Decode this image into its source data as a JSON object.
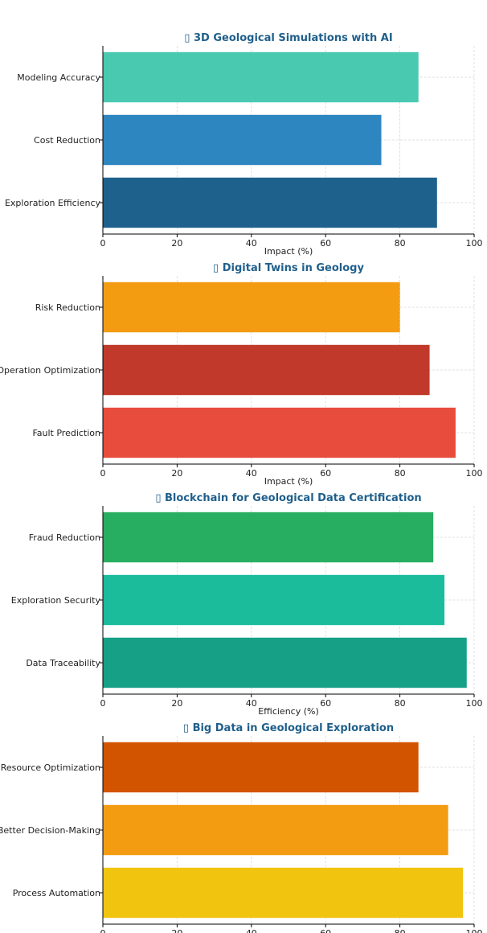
{
  "chart_data": [
    {
      "type": "bar",
      "orientation": "horizontal",
      "title": "▯ 3D Geological Simulations with AI",
      "categories": [
        "Modeling Accuracy",
        "Cost Reduction",
        "Exploration Efficiency"
      ],
      "values": [
        85,
        75,
        90
      ],
      "colors": [
        "#48c9b0",
        "#2e86c1",
        "#1f618d"
      ],
      "xlabel": "Impact (%)",
      "ylabel": "",
      "xlim": [
        0,
        100
      ],
      "xticks": [
        "0",
        "20",
        "40",
        "60",
        "80",
        "100"
      ],
      "grid": true
    },
    {
      "type": "bar",
      "orientation": "horizontal",
      "title": "▯ Digital Twins in Geology",
      "categories": [
        "Risk Reduction",
        "Operation Optimization",
        "Fault Prediction"
      ],
      "values": [
        80,
        88,
        95
      ],
      "colors": [
        "#f39c12",
        "#c0392b",
        "#e74c3c"
      ],
      "xlabel": "Impact (%)",
      "ylabel": "",
      "xlim": [
        0,
        100
      ],
      "xticks": [
        "0",
        "20",
        "40",
        "60",
        "80",
        "100"
      ],
      "grid": true
    },
    {
      "type": "bar",
      "orientation": "horizontal",
      "title": "▯ Blockchain for Geological Data Certification",
      "categories": [
        "Fraud Reduction",
        "Exploration Security",
        "Data Traceability"
      ],
      "values": [
        89,
        92,
        98
      ],
      "colors": [
        "#27ae60",
        "#1abc9c",
        "#16a085"
      ],
      "xlabel": "Efficiency (%)",
      "ylabel": "",
      "xlim": [
        0,
        100
      ],
      "xticks": [
        "0",
        "20",
        "40",
        "60",
        "80",
        "100"
      ],
      "grid": true
    },
    {
      "type": "bar",
      "orientation": "horizontal",
      "title": "▯ Big Data in Geological Exploration",
      "categories": [
        "Resource Optimization",
        "Better Decision-Making",
        "Process Automation"
      ],
      "values": [
        85,
        93,
        97
      ],
      "colors": [
        "#d35400",
        "#f39c12",
        "#f1c40f"
      ],
      "xlabel": "",
      "ylabel": "",
      "xlim": [
        0,
        100
      ],
      "xticks": [
        "0",
        "20",
        "40",
        "60",
        "80",
        "100"
      ],
      "grid": true
    }
  ]
}
